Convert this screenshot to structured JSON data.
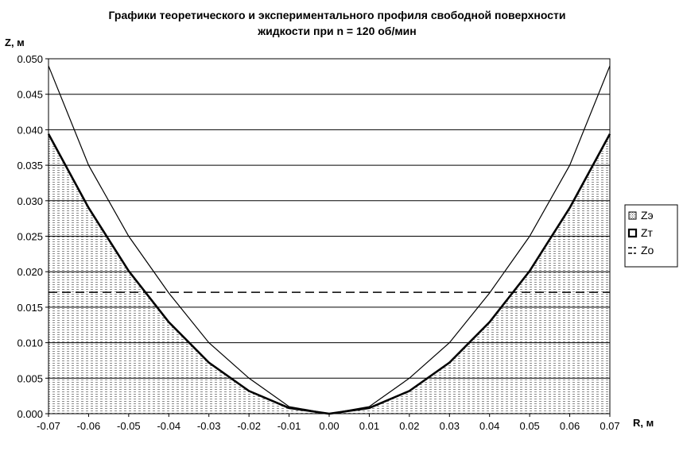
{
  "chart_data": {
    "type": "area",
    "title_line1": "Графики теоретического и экспериментального профиля свободной поверхности",
    "title_line2": "жидкости при n = 120 об/мин",
    "xlabel": "R, м",
    "ylabel": "Z, м",
    "xlim": [
      -0.07,
      0.07
    ],
    "ylim": [
      0,
      0.05
    ],
    "x_ticks": [
      -0.07,
      -0.06,
      -0.05,
      -0.04,
      -0.03,
      -0.02,
      -0.01,
      0.0,
      0.01,
      0.02,
      0.03,
      0.04,
      0.05,
      0.06,
      0.07
    ],
    "x_tick_labels": [
      "-0.07",
      "-0.06",
      "-0.05",
      "-0.04",
      "-0.03",
      "-0.02",
      "-0.01",
      "0.00",
      "0.01",
      "0.02",
      "0.03",
      "0.04",
      "0.05",
      "0.06",
      "0.07"
    ],
    "y_ticks": [
      0,
      0.005,
      0.01,
      0.015,
      0.02,
      0.025,
      0.03,
      0.035,
      0.04,
      0.045,
      0.05
    ],
    "y_tick_labels": [
      "0.000",
      "0.005",
      "0.010",
      "0.015",
      "0.020",
      "0.025",
      "0.030",
      "0.035",
      "0.040",
      "0.045",
      "0.050"
    ],
    "grid": "horizontal",
    "legend_position": "right",
    "x": [
      -0.07,
      -0.06,
      -0.05,
      -0.04,
      -0.03,
      -0.02,
      -0.01,
      0.0,
      0.01,
      0.02,
      0.03,
      0.04,
      0.05,
      0.06,
      0.07
    ],
    "series": [
      {
        "name": "Zэ",
        "style": "hatched-area",
        "values": [
          0.049,
          0.035,
          0.025,
          0.017,
          0.01,
          0.005,
          0.001,
          0.0,
          0.001,
          0.005,
          0.01,
          0.017,
          0.025,
          0.035,
          0.049
        ]
      },
      {
        "name": "Zт",
        "style": "bold-line",
        "values": [
          0.0394,
          0.029,
          0.0201,
          0.0129,
          0.0072,
          0.0032,
          0.0008,
          0.0,
          0.0008,
          0.0032,
          0.0072,
          0.0129,
          0.0201,
          0.029,
          0.0394
        ]
      },
      {
        "name": "Zo",
        "style": "dashed-line",
        "values": [
          0.0171,
          0.0171,
          0.0171,
          0.0171,
          0.0171,
          0.0171,
          0.0171,
          0.0171,
          0.0171,
          0.0171,
          0.0171,
          0.0171,
          0.0171,
          0.0171,
          0.0171
        ]
      }
    ],
    "colors": {
      "line": "#000000",
      "grid": "#000000",
      "hatch": "#9a9a9a",
      "background": "#ffffff"
    }
  }
}
